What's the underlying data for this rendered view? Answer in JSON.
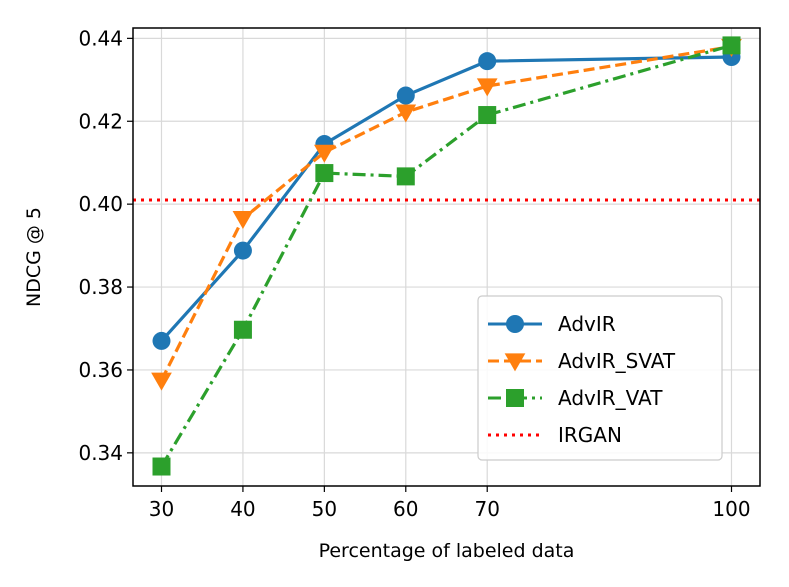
{
  "chart_data": {
    "type": "line",
    "title": "",
    "xlabel": "Percentage of labeled data",
    "ylabel": "NDCG @ 5",
    "x": [
      30,
      40,
      50,
      60,
      70,
      100
    ],
    "xlim": [
      26.5,
      103.5
    ],
    "ylim": [
      0.332,
      0.4425
    ],
    "xticks": [
      30,
      40,
      50,
      60,
      70,
      100
    ],
    "yticks": [
      0.34,
      0.36,
      0.38,
      0.4,
      0.42,
      0.44
    ],
    "ytick_labels": [
      "0.34",
      "0.36",
      "0.38",
      "0.40",
      "0.42",
      "0.44"
    ],
    "grid": true,
    "legend_position": "lower-right",
    "series": [
      {
        "name": "AdvIR",
        "values": [
          0.367,
          0.3888,
          0.4145,
          0.4262,
          0.4345,
          0.4355
        ],
        "color": "#1f77b4",
        "linestyle": "solid",
        "marker": "circle"
      },
      {
        "name": "AdvIR_SVAT",
        "values": [
          0.3575,
          0.3965,
          0.4125,
          0.4222,
          0.4285,
          0.438
        ],
        "color": "#ff7f0e",
        "linestyle": "dashed",
        "marker": "triangle-down"
      },
      {
        "name": "AdvIR_VAT",
        "values": [
          0.3367,
          0.3697,
          0.4075,
          0.4067,
          0.4215,
          0.4383
        ],
        "color": "#2ca02c",
        "linestyle": "dashdot",
        "marker": "square"
      }
    ],
    "reference_lines": [
      {
        "name": "IRGAN",
        "y": 0.401,
        "color": "#ff0000",
        "linestyle": "dotted"
      }
    ]
  }
}
